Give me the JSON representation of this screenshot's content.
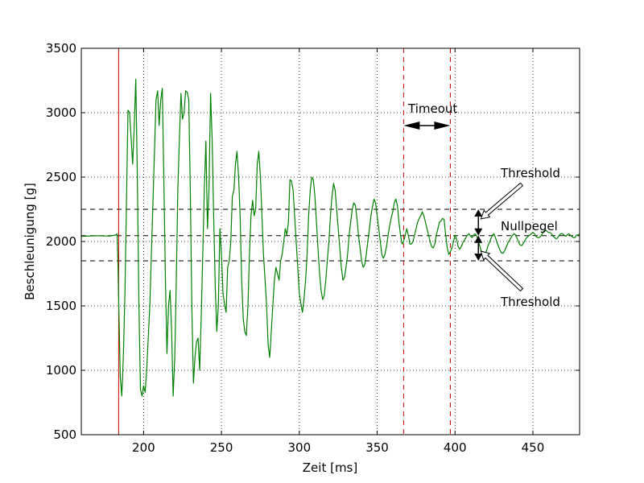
{
  "chart_data": {
    "type": "line",
    "title": "",
    "xlabel": "Zeit [ms]",
    "ylabel": "Beschleunigung [g]",
    "xlim": [
      160,
      480
    ],
    "ylim": [
      500,
      3500
    ],
    "xticks": [
      200,
      250,
      300,
      350,
      400,
      450
    ],
    "yticks": [
      500,
      1000,
      1500,
      2000,
      2500,
      3000,
      3500
    ],
    "grid": true,
    "series": [
      {
        "color": "#008000",
        "points": [
          [
            160,
            2040
          ],
          [
            170,
            2045
          ],
          [
            178,
            2042
          ],
          [
            182,
            2050
          ],
          [
            183,
            2060
          ],
          [
            183.5,
            1850
          ],
          [
            184,
            1550
          ],
          [
            185,
            950
          ],
          [
            186,
            800
          ],
          [
            187,
            1100
          ],
          [
            188,
            1600
          ],
          [
            189,
            2300
          ],
          [
            190,
            3020
          ],
          [
            191,
            3000
          ],
          [
            192,
            2800
          ],
          [
            193,
            2600
          ],
          [
            194,
            2900
          ],
          [
            195,
            3260
          ],
          [
            196,
            2500
          ],
          [
            197,
            1500
          ],
          [
            198,
            850
          ],
          [
            199,
            800
          ],
          [
            200,
            880
          ],
          [
            201,
            830
          ],
          [
            202,
            1000
          ],
          [
            204,
            1500
          ],
          [
            206,
            2300
          ],
          [
            207,
            2700
          ],
          [
            208,
            3100
          ],
          [
            209,
            3170
          ],
          [
            210,
            2900
          ],
          [
            211,
            3100
          ],
          [
            212,
            3190
          ],
          [
            213,
            2500
          ],
          [
            214,
            1700
          ],
          [
            215,
            1130
          ],
          [
            216,
            1500
          ],
          [
            217,
            1620
          ],
          [
            218,
            1300
          ],
          [
            219,
            800
          ],
          [
            220,
            1100
          ],
          [
            221,
            1700
          ],
          [
            222,
            2400
          ],
          [
            223,
            2800
          ],
          [
            224,
            3150
          ],
          [
            225,
            2950
          ],
          [
            226,
            3000
          ],
          [
            227,
            3170
          ],
          [
            228,
            3160
          ],
          [
            229,
            3100
          ],
          [
            230,
            2400
          ],
          [
            231,
            1500
          ],
          [
            232,
            900
          ],
          [
            233,
            1100
          ],
          [
            234,
            1220
          ],
          [
            235,
            1250
          ],
          [
            236,
            1000
          ],
          [
            237,
            1400
          ],
          [
            238,
            1900
          ],
          [
            239,
            2400
          ],
          [
            240,
            2780
          ],
          [
            241,
            2100
          ],
          [
            242,
            2400
          ],
          [
            243,
            3150
          ],
          [
            244,
            2800
          ],
          [
            245,
            2200
          ],
          [
            246,
            1650
          ],
          [
            247,
            1300
          ],
          [
            248,
            1500
          ],
          [
            249,
            2100
          ],
          [
            250,
            1900
          ],
          [
            251,
            1600
          ],
          [
            252,
            1510
          ],
          [
            253,
            1450
          ],
          [
            254,
            1800
          ],
          [
            255,
            1850
          ],
          [
            256,
            2000
          ],
          [
            257,
            2350
          ],
          [
            258,
            2400
          ],
          [
            259,
            2600
          ],
          [
            260,
            2700
          ],
          [
            261,
            2500
          ],
          [
            262,
            2200
          ],
          [
            263,
            1700
          ],
          [
            264,
            1400
          ],
          [
            265,
            1300
          ],
          [
            266,
            1270
          ],
          [
            267,
            1500
          ],
          [
            268,
            1900
          ],
          [
            269,
            2200
          ],
          [
            270,
            2320
          ],
          [
            271,
            2200
          ],
          [
            272,
            2250
          ],
          [
            273,
            2600
          ],
          [
            274,
            2700
          ],
          [
            275,
            2500
          ],
          [
            276,
            2200
          ],
          [
            277,
            1900
          ],
          [
            278,
            1700
          ],
          [
            279,
            1500
          ],
          [
            280,
            1200
          ],
          [
            281,
            1100
          ],
          [
            282,
            1300
          ],
          [
            283,
            1500
          ],
          [
            284,
            1700
          ],
          [
            285,
            1800
          ],
          [
            286,
            1750
          ],
          [
            287,
            1700
          ],
          [
            288,
            1850
          ],
          [
            289,
            1900
          ],
          [
            290,
            2000
          ],
          [
            291,
            2100
          ],
          [
            292,
            2050
          ],
          [
            293,
            2150
          ],
          [
            294,
            2480
          ],
          [
            295,
            2470
          ],
          [
            296,
            2400
          ],
          [
            297,
            2200
          ],
          [
            298,
            2000
          ],
          [
            299,
            1800
          ],
          [
            300,
            1600
          ],
          [
            301,
            1520
          ],
          [
            302,
            1450
          ],
          [
            303,
            1550
          ],
          [
            304,
            1700
          ],
          [
            305,
            1900
          ],
          [
            306,
            2200
          ],
          [
            307,
            2400
          ],
          [
            308,
            2500
          ],
          [
            309,
            2480
          ],
          [
            310,
            2350
          ],
          [
            311,
            2150
          ],
          [
            312,
            1950
          ],
          [
            313,
            1750
          ],
          [
            314,
            1620
          ],
          [
            315,
            1550
          ],
          [
            316,
            1580
          ],
          [
            317,
            1700
          ],
          [
            318,
            1850
          ],
          [
            319,
            2000
          ],
          [
            320,
            2200
          ],
          [
            321,
            2350
          ],
          [
            322,
            2450
          ],
          [
            323,
            2400
          ],
          [
            324,
            2250
          ],
          [
            325,
            2100
          ],
          [
            326,
            1950
          ],
          [
            327,
            1800
          ],
          [
            328,
            1700
          ],
          [
            329,
            1720
          ],
          [
            330,
            1800
          ],
          [
            331,
            1900
          ],
          [
            332,
            2050
          ],
          [
            333,
            2150
          ],
          [
            334,
            2250
          ],
          [
            335,
            2300
          ],
          [
            336,
            2280
          ],
          [
            337,
            2180
          ],
          [
            338,
            2050
          ],
          [
            339,
            1950
          ],
          [
            340,
            1850
          ],
          [
            341,
            1800
          ],
          [
            342,
            1820
          ],
          [
            343,
            1900
          ],
          [
            344,
            2000
          ],
          [
            345,
            2100
          ],
          [
            346,
            2200
          ],
          [
            347,
            2270
          ],
          [
            348,
            2330
          ],
          [
            349,
            2300
          ],
          [
            350,
            2200
          ],
          [
            351,
            2100
          ],
          [
            352,
            2000
          ],
          [
            353,
            1900
          ],
          [
            354,
            1870
          ],
          [
            355,
            1900
          ],
          [
            356,
            1960
          ],
          [
            357,
            2050
          ],
          [
            358,
            2120
          ],
          [
            359,
            2180
          ],
          [
            360,
            2230
          ],
          [
            361,
            2300
          ],
          [
            362,
            2330
          ],
          [
            363,
            2280
          ],
          [
            364,
            2150
          ],
          [
            365,
            2050
          ],
          [
            366,
            1980
          ],
          [
            367,
            2000
          ],
          [
            368,
            2050
          ],
          [
            369,
            2100
          ],
          [
            370,
            2050
          ],
          [
            371,
            1980
          ],
          [
            372,
            1980
          ],
          [
            373,
            2000
          ],
          [
            374,
            2050
          ],
          [
            375,
            2100
          ],
          [
            376,
            2150
          ],
          [
            377,
            2180
          ],
          [
            378,
            2200
          ],
          [
            379,
            2230
          ],
          [
            380,
            2200
          ],
          [
            381,
            2150
          ],
          [
            382,
            2100
          ],
          [
            383,
            2050
          ],
          [
            384,
            2000
          ],
          [
            385,
            1960
          ],
          [
            386,
            1950
          ],
          [
            387,
            1980
          ],
          [
            388,
            2050
          ],
          [
            389,
            2100
          ],
          [
            390,
            2150
          ],
          [
            391,
            2160
          ],
          [
            392,
            2180
          ],
          [
            393,
            2170
          ],
          [
            394,
            2050
          ],
          [
            395,
            1950
          ],
          [
            396,
            1900
          ],
          [
            397,
            1920
          ],
          [
            398,
            1950
          ],
          [
            399,
            2000
          ],
          [
            400,
            2050
          ],
          [
            401,
            2020
          ],
          [
            402,
            1960
          ],
          [
            403,
            1940
          ],
          [
            404,
            1960
          ],
          [
            405,
            1990
          ],
          [
            406,
            2010
          ],
          [
            407,
            2030
          ],
          [
            408,
            2050
          ],
          [
            409,
            2060
          ],
          [
            410,
            2040
          ],
          [
            411,
            2030
          ],
          [
            412,
            2050
          ],
          [
            413,
            2060
          ],
          [
            414,
            2040
          ],
          [
            415,
            2000
          ],
          [
            416,
            1960
          ],
          [
            417,
            1920
          ],
          [
            418,
            1900
          ],
          [
            419,
            1910
          ],
          [
            420,
            1920
          ],
          [
            421,
            1960
          ],
          [
            422,
            1990
          ],
          [
            423,
            2020
          ],
          [
            424,
            2050
          ],
          [
            425,
            2060
          ],
          [
            426,
            2030
          ],
          [
            427,
            1990
          ],
          [
            428,
            1960
          ],
          [
            429,
            1930
          ],
          [
            430,
            1910
          ],
          [
            431,
            1910
          ],
          [
            432,
            1930
          ],
          [
            433,
            1960
          ],
          [
            434,
            1990
          ],
          [
            435,
            2010
          ],
          [
            436,
            2030
          ],
          [
            437,
            2050
          ],
          [
            438,
            2060
          ],
          [
            439,
            2050
          ],
          [
            440,
            2020
          ],
          [
            441,
            1990
          ],
          [
            442,
            1970
          ],
          [
            443,
            1970
          ],
          [
            444,
            1990
          ],
          [
            445,
            2010
          ],
          [
            446,
            2030
          ],
          [
            447,
            2040
          ],
          [
            448,
            2050
          ],
          [
            449,
            2060
          ],
          [
            450,
            2070
          ],
          [
            451,
            2060
          ],
          [
            452,
            2040
          ],
          [
            453,
            2030
          ],
          [
            454,
            2030
          ],
          [
            455,
            2040
          ],
          [
            456,
            2060
          ],
          [
            457,
            2080
          ],
          [
            458,
            2090
          ],
          [
            459,
            2080
          ],
          [
            460,
            2070
          ],
          [
            461,
            2070
          ],
          [
            462,
            2060
          ],
          [
            463,
            2040
          ],
          [
            464,
            2030
          ],
          [
            465,
            2020
          ],
          [
            466,
            2030
          ],
          [
            467,
            2050
          ],
          [
            468,
            2060
          ],
          [
            469,
            2060
          ],
          [
            470,
            2050
          ],
          [
            471,
            2040
          ],
          [
            472,
            2050
          ],
          [
            473,
            2060
          ],
          [
            474,
            2050
          ],
          [
            475,
            2040
          ],
          [
            476,
            2030
          ],
          [
            477,
            2030
          ],
          [
            478,
            2050
          ],
          [
            479,
            2050
          ],
          [
            480,
            2060
          ]
        ]
      }
    ],
    "reference_lines": {
      "horizontal": [
        {
          "name": "threshold-upper",
          "y": 2250,
          "style": "dashed",
          "color": "#000000"
        },
        {
          "name": "nullpegel",
          "y": 2045,
          "style": "dashed",
          "color": "#000000"
        },
        {
          "name": "threshold-lower",
          "y": 1850,
          "style": "dashed",
          "color": "#000000"
        }
      ],
      "vertical": [
        {
          "name": "trigger",
          "x": 184,
          "style": "solid",
          "color": "#cc0000"
        },
        {
          "name": "timeout-start",
          "x": 367,
          "style": "dashed",
          "color": "#cc0000"
        },
        {
          "name": "timeout-end",
          "x": 397,
          "style": "dashed",
          "color": "#cc0000"
        }
      ]
    },
    "annotations": {
      "timeout": {
        "label": "Timeout",
        "x1": 367,
        "x2": 397,
        "y": 2900
      },
      "threshold_upper": {
        "label": "Threshold"
      },
      "nullpegel": {
        "label": "Nullpegel"
      },
      "threshold_lower": {
        "label": "Threshold"
      },
      "arrow_x": 415
    }
  }
}
